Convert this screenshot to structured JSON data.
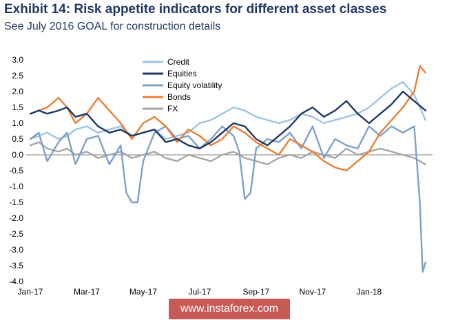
{
  "header": {
    "title": "Exhibit 14: Risk appetite indicators for different asset classes",
    "subtitle": "See July 2016 GOAL for construction details"
  },
  "watermark": {
    "text": "www.instaforex.com"
  },
  "chart_data": {
    "type": "line",
    "title": "Exhibit 14: Risk appetite indicators for different asset classes",
    "subtitle": "See July 2016 GOAL for construction details",
    "xlabel": "",
    "ylabel": "",
    "ylim": [
      -4.0,
      3.0
    ],
    "yticks": [
      "3.0",
      "2.5",
      "2.0",
      "1.5",
      "1.0",
      "0.5",
      "0.0",
      "-0.5",
      "-1.0",
      "-1.5",
      "-2.0",
      "-2.5",
      "-3.0",
      "-3.5",
      "-4.0"
    ],
    "x_tick_labels": [
      "Jan-17",
      "Mar-17",
      "May-17",
      "Jul-17",
      "Sep-17",
      "Nov-17",
      "Jan-18"
    ],
    "x_tick_positions": [
      0,
      2,
      4,
      6,
      8,
      10,
      12
    ],
    "xlim": [
      0,
      14.2
    ],
    "grid": false,
    "legend_position": "top-center",
    "series": [
      {
        "name": "Credit",
        "color": "#9dc3e6",
        "x": [
          0,
          0.3,
          0.6,
          1,
          1.3,
          1.6,
          2,
          2.4,
          2.8,
          3.2,
          3.6,
          4,
          4.4,
          4.8,
          5.2,
          5.6,
          6,
          6.4,
          6.8,
          7.2,
          7.6,
          8,
          8.4,
          8.8,
          9.2,
          9.6,
          10,
          10.4,
          10.8,
          11.2,
          11.6,
          12,
          12.4,
          12.8,
          13.2,
          13.6,
          14
        ],
        "values": [
          0.5,
          0.6,
          0.7,
          0.5,
          0.6,
          0.8,
          0.9,
          0.7,
          0.8,
          0.9,
          0.6,
          0.7,
          0.8,
          0.5,
          0.6,
          0.7,
          1.0,
          1.1,
          1.3,
          1.5,
          1.4,
          1.2,
          1.1,
          1.0,
          1.1,
          1.3,
          1.2,
          1.0,
          1.1,
          1.2,
          1.3,
          1.5,
          1.8,
          2.1,
          2.3,
          1.9,
          1.1
        ]
      },
      {
        "name": "Equities",
        "color": "#1f3864",
        "x": [
          0,
          0.3,
          0.6,
          1,
          1.3,
          1.6,
          2,
          2.4,
          2.8,
          3.2,
          3.6,
          4,
          4.4,
          4.8,
          5.2,
          5.6,
          6,
          6.4,
          6.8,
          7.2,
          7.6,
          8,
          8.4,
          8.8,
          9.2,
          9.6,
          10,
          10.4,
          10.8,
          11.2,
          11.6,
          12,
          12.4,
          12.8,
          13.2,
          13.6,
          14
        ],
        "values": [
          1.3,
          1.4,
          1.3,
          1.4,
          1.5,
          1.2,
          1.3,
          0.9,
          0.7,
          0.8,
          0.6,
          0.7,
          0.8,
          0.4,
          0.5,
          0.3,
          0.2,
          0.4,
          0.7,
          1.0,
          0.9,
          0.5,
          0.3,
          0.6,
          0.9,
          1.3,
          1.5,
          1.2,
          1.4,
          1.7,
          1.3,
          1.0,
          1.3,
          1.6,
          2.0,
          1.7,
          1.4
        ]
      },
      {
        "name": "Equity volatility",
        "color": "#7ca1c9",
        "x": [
          0,
          0.3,
          0.6,
          1,
          1.3,
          1.6,
          2,
          2.4,
          2.8,
          3.2,
          3.4,
          3.6,
          3.8,
          4,
          4.4,
          4.8,
          5.2,
          5.6,
          6,
          6.4,
          6.8,
          7.2,
          7.4,
          7.6,
          7.8,
          8,
          8.4,
          8.8,
          9.2,
          9.6,
          10,
          10.4,
          10.8,
          11.2,
          11.6,
          12,
          12.4,
          12.8,
          13.2,
          13.6,
          13.8,
          13.9,
          14
        ],
        "values": [
          0.5,
          0.7,
          -0.2,
          0.4,
          0.7,
          -0.3,
          0.5,
          0.6,
          -0.3,
          0.3,
          -1.2,
          -1.5,
          -1.5,
          -0.2,
          0.7,
          0.9,
          0.5,
          0.6,
          0.2,
          0.5,
          0.9,
          0.6,
          0.1,
          -1.4,
          -1.2,
          0.2,
          0.5,
          0.4,
          0.7,
          0.2,
          0.9,
          -0.1,
          0.5,
          0.3,
          0.2,
          0.9,
          0.6,
          0.9,
          0.7,
          0.9,
          -1.5,
          -3.7,
          -3.4
        ]
      },
      {
        "name": "Bonds",
        "color": "#ed7d31",
        "x": [
          0,
          0.3,
          0.6,
          1,
          1.3,
          1.6,
          2,
          2.4,
          2.8,
          3.2,
          3.6,
          4,
          4.4,
          4.8,
          5.2,
          5.6,
          6,
          6.4,
          6.8,
          7.2,
          7.6,
          8,
          8.4,
          8.8,
          9.2,
          9.6,
          10,
          10.4,
          10.8,
          11.2,
          11.6,
          12,
          12.4,
          12.8,
          13.2,
          13.6,
          13.8,
          14
        ],
        "values": [
          1.3,
          1.4,
          1.5,
          1.8,
          1.5,
          1.0,
          1.3,
          1.8,
          1.4,
          1.0,
          0.5,
          1.0,
          1.2,
          0.9,
          0.4,
          0.8,
          0.6,
          0.3,
          0.5,
          0.9,
          0.7,
          0.4,
          0.2,
          0.0,
          0.5,
          0.3,
          0.1,
          -0.2,
          -0.4,
          -0.5,
          -0.2,
          0.1,
          0.7,
          1.1,
          1.5,
          2.0,
          2.8,
          2.6
        ]
      },
      {
        "name": "FX",
        "color": "#a6a6a6",
        "x": [
          0,
          0.3,
          0.6,
          1,
          1.3,
          1.6,
          2,
          2.4,
          2.8,
          3.2,
          3.6,
          4,
          4.4,
          4.8,
          5.2,
          5.6,
          6,
          6.4,
          6.8,
          7.2,
          7.6,
          8,
          8.4,
          8.8,
          9.2,
          9.6,
          10,
          10.4,
          10.8,
          11.2,
          11.6,
          12,
          12.4,
          12.8,
          13.2,
          13.6,
          14
        ],
        "values": [
          0.3,
          0.4,
          0.2,
          0.1,
          0.2,
          0.0,
          0.1,
          -0.1,
          0.0,
          0.1,
          -0.1,
          0.0,
          0.1,
          -0.1,
          -0.2,
          0.0,
          -0.1,
          -0.2,
          0.0,
          0.1,
          -0.1,
          -0.2,
          -0.3,
          -0.1,
          0.0,
          -0.1,
          0.1,
          0.0,
          -0.1,
          0.2,
          0.0,
          0.1,
          0.2,
          0.1,
          0.0,
          -0.1,
          -0.3
        ]
      }
    ]
  }
}
